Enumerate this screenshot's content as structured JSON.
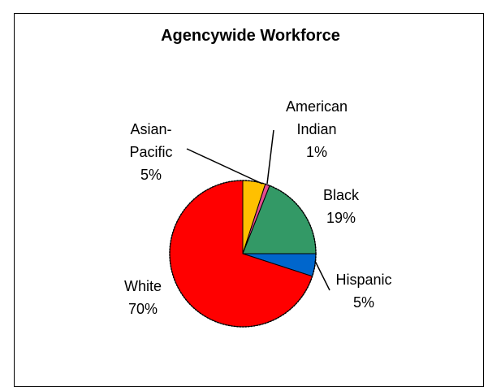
{
  "chart_data": {
    "type": "pie",
    "title": "Agencywide Workforce",
    "slices": [
      {
        "name": "Asian-Pacific",
        "label_lines": [
          "Asian-",
          "Pacific",
          "5%"
        ],
        "value": 5,
        "pct_label": "5%",
        "color": "#FFC000"
      },
      {
        "name": "American Indian",
        "label_lines": [
          "American",
          "Indian",
          "1%"
        ],
        "value": 1,
        "pct_label": "1%",
        "color": "#E64B8F"
      },
      {
        "name": "Black",
        "label_lines": [
          "Black",
          "19%"
        ],
        "value": 19,
        "pct_label": "19%",
        "color": "#339966"
      },
      {
        "name": "Hispanic",
        "label_lines": [
          "Hispanic",
          "5%"
        ],
        "value": 5,
        "pct_label": "5%",
        "color": "#0066CC"
      },
      {
        "name": "White",
        "label_lines": [
          "White",
          "70%"
        ],
        "value": 70,
        "pct_label": "70%",
        "color": "#FF0000"
      }
    ],
    "legend": "none",
    "start_angle": "12 o'clock, clockwise"
  }
}
